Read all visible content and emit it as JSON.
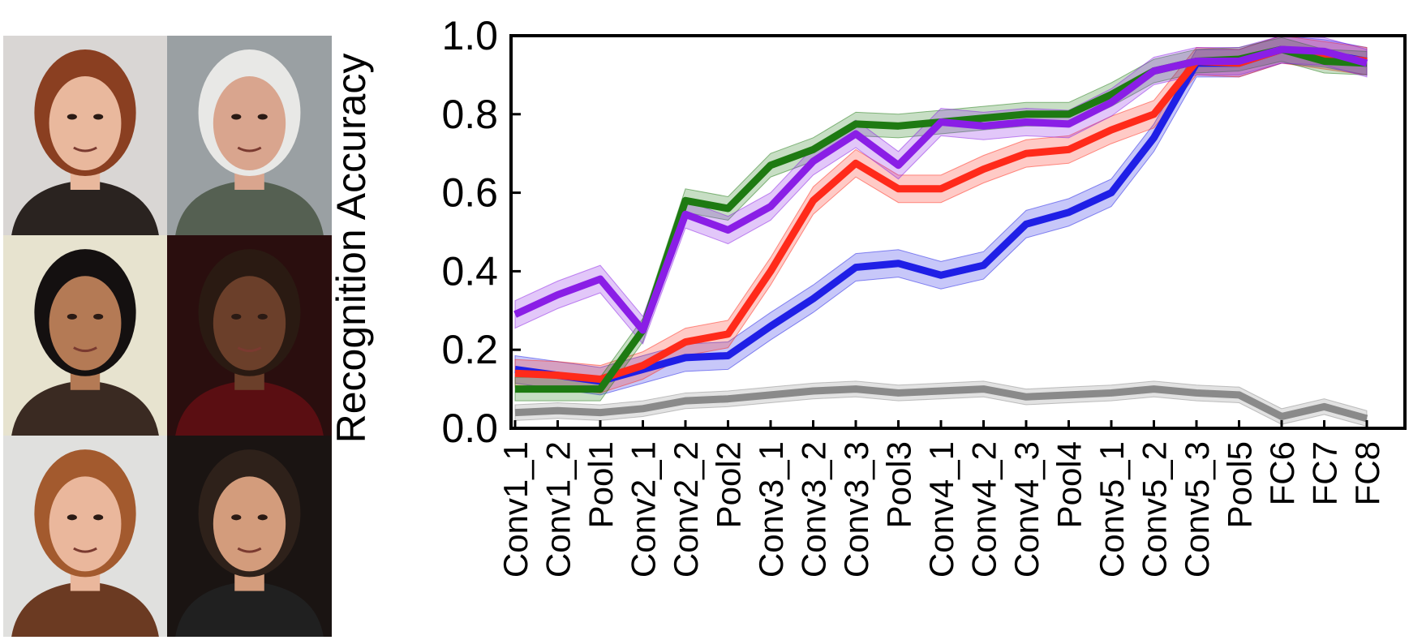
{
  "faces": [
    {
      "name": "face-woman-auburn-hair",
      "bg": "#d9d6d4",
      "skin": "#e9b89d",
      "hair": "#8a3f21",
      "shirt": "#2a2320"
    },
    {
      "name": "face-man-white-hair",
      "bg": "#9aa0a3",
      "skin": "#d9a58e",
      "hair": "#e8e8e6",
      "shirt": "#556052"
    },
    {
      "name": "face-woman-curly-hair",
      "bg": "#e7e3cf",
      "skin": "#b47a55",
      "hair": "#141010",
      "shirt": "#3a2a22"
    },
    {
      "name": "face-man-bald",
      "bg": "#2a0e0e",
      "skin": "#6b3f2a",
      "hair": "#2a1a12",
      "shirt": "#5a0e12"
    },
    {
      "name": "face-woman-smiling",
      "bg": "#e0e0de",
      "skin": "#eab79c",
      "hair": "#a35a2e",
      "shirt": "#6b3a22"
    },
    {
      "name": "face-man-dark-hair",
      "bg": "#1a1412",
      "skin": "#d39c7c",
      "hair": "#2e211a",
      "shirt": "#202020"
    }
  ],
  "chart_data": {
    "type": "line",
    "ylabel": "Recognition Accuracy",
    "xlabel": "",
    "ylim": [
      0.0,
      1.0
    ],
    "yticks": [
      "0.0",
      "0.2",
      "0.4",
      "0.6",
      "0.8",
      "1.0"
    ],
    "categories": [
      "Conv1_1",
      "Conv1_2",
      "Pool1",
      "Conv2_1",
      "Conv2_2",
      "Pool2",
      "Conv3_1",
      "Conv3_2",
      "Conv3_3",
      "Pool3",
      "Conv4_1",
      "Conv4_2",
      "Conv4_3",
      "Pool4",
      "Conv5_1",
      "Conv5_2",
      "Conv5_3",
      "Pool5",
      "FC6",
      "FC7",
      "FC8"
    ],
    "grid": false,
    "legend": false,
    "series": [
      {
        "color": "#8a8a8a",
        "band": 0.02,
        "values": [
          0.04,
          0.045,
          0.04,
          0.05,
          0.07,
          0.075,
          0.085,
          0.095,
          0.1,
          0.09,
          0.095,
          0.1,
          0.08,
          0.085,
          0.09,
          0.1,
          0.09,
          0.085,
          0.03,
          0.055,
          0.025
        ]
      },
      {
        "color": "#1f1fe6",
        "band": 0.035,
        "values": [
          0.15,
          0.135,
          0.12,
          0.15,
          0.18,
          0.185,
          0.26,
          0.33,
          0.41,
          0.42,
          0.39,
          0.415,
          0.52,
          0.55,
          0.6,
          0.74,
          0.93,
          0.93,
          0.965,
          0.955,
          0.935
        ]
      },
      {
        "color": "#ff2a1a",
        "band": 0.035,
        "values": [
          0.14,
          0.135,
          0.125,
          0.16,
          0.22,
          0.24,
          0.4,
          0.58,
          0.675,
          0.61,
          0.61,
          0.66,
          0.7,
          0.71,
          0.76,
          0.8,
          0.935,
          0.93,
          0.965,
          0.95,
          0.935
        ]
      },
      {
        "color": "#1e7a12",
        "band": 0.03,
        "values": [
          0.1,
          0.1,
          0.1,
          0.25,
          0.58,
          0.56,
          0.67,
          0.71,
          0.775,
          0.77,
          0.78,
          0.79,
          0.8,
          0.8,
          0.85,
          0.91,
          0.935,
          0.94,
          0.965,
          0.935,
          0.93
        ]
      },
      {
        "color": "#8a1ee6",
        "band": 0.035,
        "values": [
          0.29,
          0.34,
          0.38,
          0.25,
          0.545,
          0.505,
          0.565,
          0.68,
          0.75,
          0.67,
          0.78,
          0.77,
          0.78,
          0.775,
          0.83,
          0.91,
          0.935,
          0.935,
          0.965,
          0.96,
          0.93
        ]
      }
    ]
  }
}
